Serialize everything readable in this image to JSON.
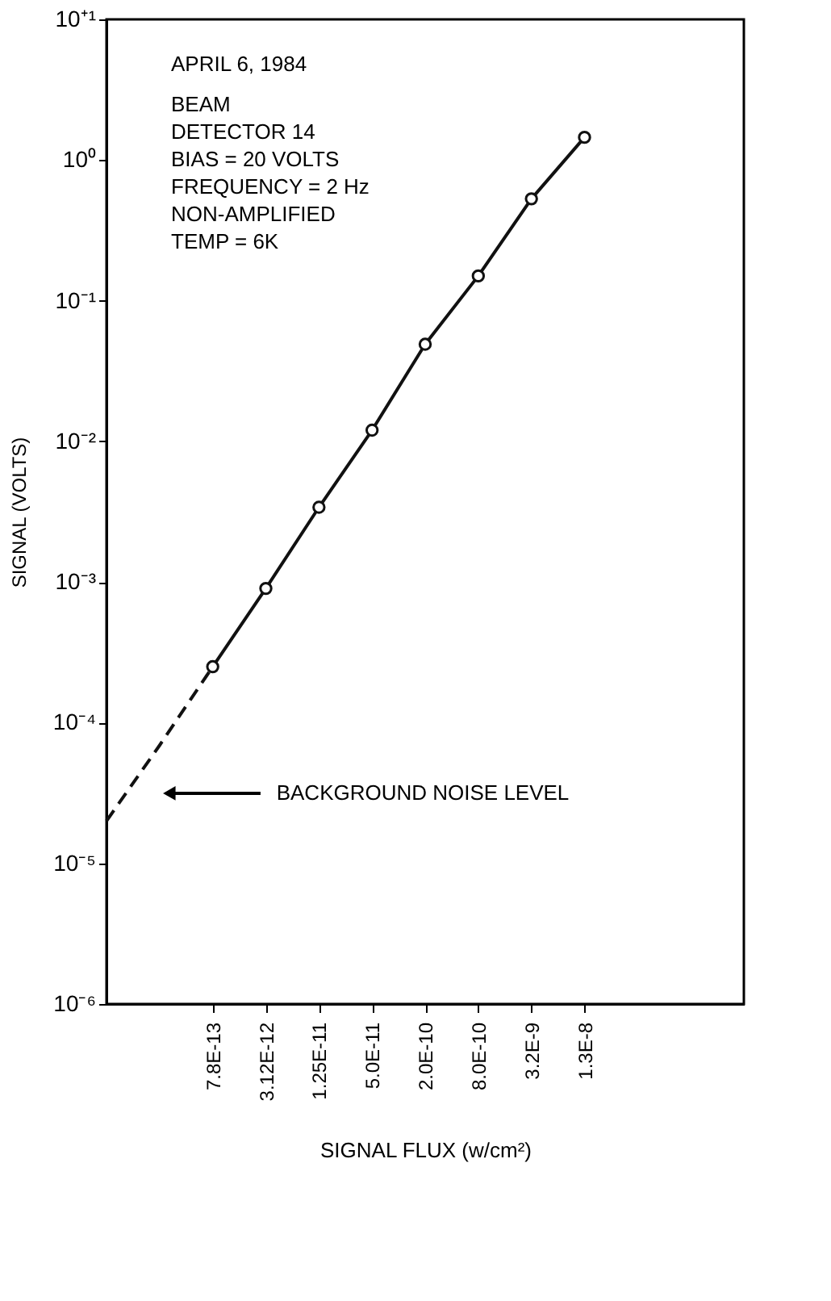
{
  "chart_data": {
    "type": "line",
    "xlabel": "SIGNAL FLUX (w/cm²)",
    "ylabel": "SIGNAL (VOLTS)",
    "categories": [
      null,
      null,
      "7.8E-13",
      "3.12E-12",
      "1.25E-11",
      "5.0E-11",
      "2.0E-10",
      "8.0E-10",
      "3.2E-9",
      "1.3E-8",
      null,
      null,
      null
    ],
    "series": [
      {
        "color": "#111111",
        "marker": "circle",
        "line_style": "solid",
        "values": [
          null,
          null,
          0.00025,
          0.0009,
          0.0034,
          0.012,
          0.049,
          0.15,
          0.53,
          1.45,
          null,
          null,
          null
        ]
      },
      {
        "color": "#111111",
        "marker": "none",
        "line_style": "dashed",
        "values": [
          2e-05,
          6.9e-05,
          0.00025,
          null,
          null,
          null,
          null,
          null,
          null,
          null,
          null,
          null,
          null
        ]
      }
    ],
    "log": "y",
    "ylim": [
      1e-06,
      10
    ],
    "yticks": [
      {
        "value": 10,
        "label": "10⁺¹"
      },
      {
        "value": 1,
        "label": "10⁰"
      },
      {
        "value": 0.1,
        "label": "10⁻¹"
      },
      {
        "value": 0.01,
        "label": "10⁻²"
      },
      {
        "value": 0.001,
        "label": "10⁻³"
      },
      {
        "value": 0.0001,
        "label": "10⁻⁴"
      },
      {
        "value": 1e-05,
        "label": "10⁻⁵"
      },
      {
        "value": 1e-06,
        "label": "10⁻⁶"
      }
    ],
    "grid": false,
    "annotations": [
      "APRIL 6, 1984",
      "BEAM",
      "DETECTOR 14",
      "BIAS = 20 VOLTS",
      "FREQUENCY = 2 Hz",
      "NON-AMPLIFIED",
      "TEMP = 6K",
      "BACKGROUND NOISE LEVEL"
    ]
  }
}
